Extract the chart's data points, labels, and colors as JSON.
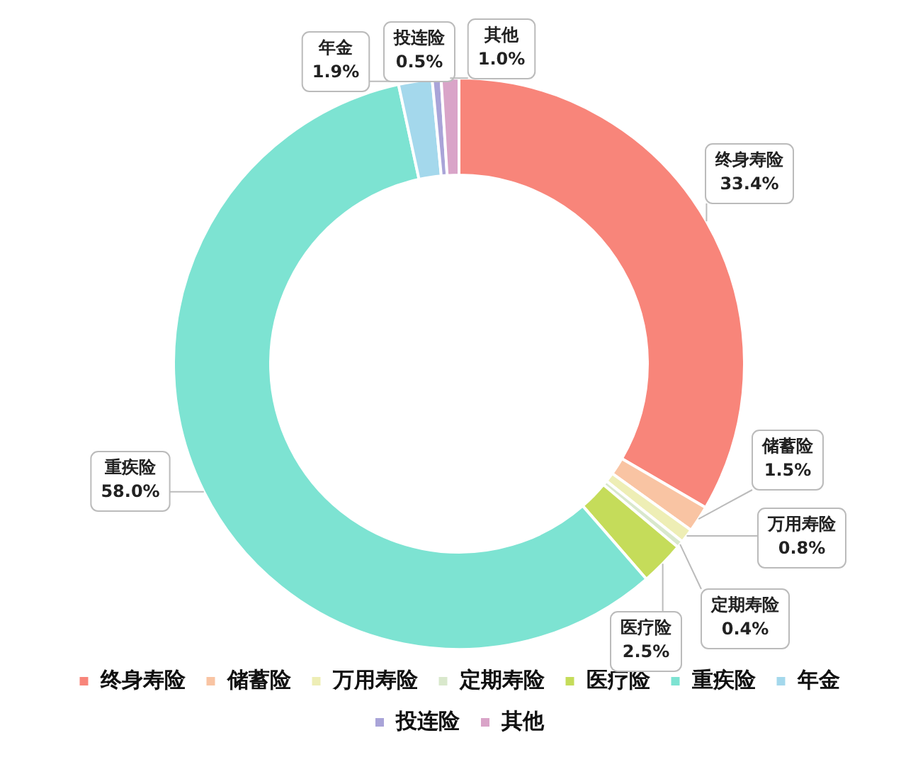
{
  "chart_data": {
    "type": "donut",
    "categories": [
      "终身寿险",
      "储蓄险",
      "万用寿险",
      "定期寿险",
      "医疗险",
      "重疾险",
      "年金",
      "投连险",
      "其他"
    ],
    "values": [
      33.4,
      1.5,
      0.8,
      0.4,
      2.5,
      58.0,
      1.9,
      0.5,
      1.0
    ],
    "value_labels": [
      "33.4%",
      "1.5%",
      "0.8%",
      "0.4%",
      "2.5%",
      "58.0%",
      "1.9%",
      "0.5%",
      "1.0%"
    ],
    "colors": [
      "#f8857a",
      "#f9c4a3",
      "#eeeeb5",
      "#d9e8cc",
      "#c5dc5a",
      "#7de3d2",
      "#a4d8ec",
      "#a9a4d8",
      "#d9a4c8"
    ],
    "legend": "bottom"
  }
}
